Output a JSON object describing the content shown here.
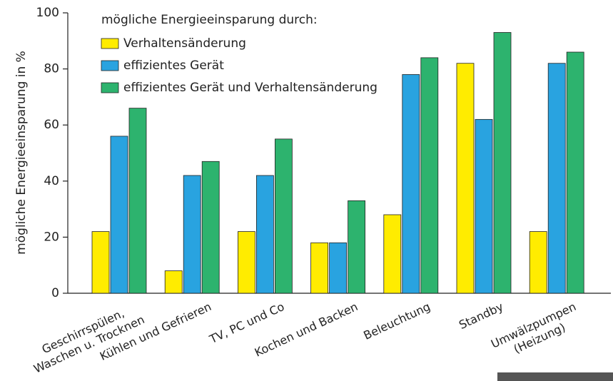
{
  "chart_data": {
    "type": "bar",
    "legend_title": "mögliche Energieeinsparung durch:",
    "y_label": "mögliche Energieeinsparung in %",
    "categories": [
      "Geschirrspülen,\nWaschen u. Trocknen",
      "Kühlen und Gefrieren",
      "TV, PC und Co",
      "Kochen und Backen",
      "Beleuchtung",
      "Standby",
      "Umwälzpumpen\n(Heizung)"
    ],
    "series": [
      {
        "name": "Verhaltensänderung",
        "color": "#ffec00",
        "values": [
          22,
          8,
          22,
          18,
          28,
          82,
          22
        ]
      },
      {
        "name": "effizientes Gerät",
        "color": "#29a3e0",
        "values": [
          56,
          42,
          42,
          18,
          78,
          62,
          82
        ]
      },
      {
        "name": "effizientes Gerät und Verhaltensänderung",
        "color": "#2db36e",
        "values": [
          66,
          47,
          55,
          33,
          84,
          93,
          86
        ]
      }
    ],
    "ylim": [
      0,
      100
    ],
    "yticks": [
      0,
      20,
      40,
      60,
      80,
      100
    ],
    "legend": "upper left"
  }
}
